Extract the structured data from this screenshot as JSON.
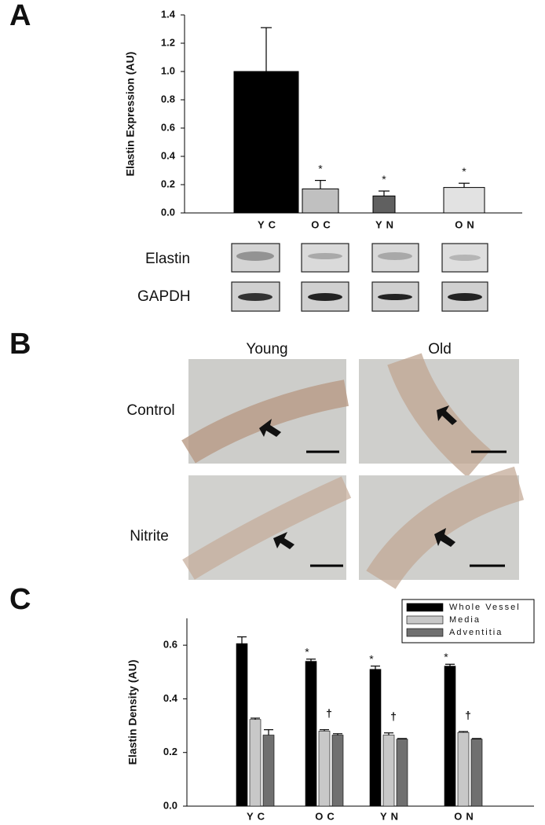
{
  "panels": [
    "A",
    "B",
    "C"
  ],
  "blots": {
    "rows": [
      "Elastin",
      "GAPDH"
    ]
  },
  "micrographs": {
    "columns": [
      "Young",
      "Old"
    ],
    "rows": [
      "Control",
      "Nitrite"
    ]
  },
  "chart_data": [
    {
      "type": "bar",
      "ylabel": "Elastin Expression (AU)",
      "categories": [
        "YC",
        "OC",
        "YN",
        "ON"
      ],
      "values": [
        1.0,
        0.17,
        0.12,
        0.18
      ],
      "errors": [
        0.31,
        0.06,
        0.035,
        0.03
      ],
      "colors": [
        "#000000",
        "#c0c0c0",
        "#606060",
        "#e2e2e2"
      ],
      "markers": [
        null,
        "*",
        "*",
        "*"
      ],
      "ylim": [
        0,
        1.4
      ],
      "yticks": [
        {
          "value": 0,
          "label": "0.0"
        },
        0.2,
        0.4,
        0.6,
        0.8,
        {
          "value": 1,
          "label": "1.0"
        },
        1.2,
        1.4
      ]
    },
    {
      "type": "grouped_bar",
      "ylabel": "Elastin Density (AU)",
      "categories": [
        "YC",
        "OC",
        "YN",
        "ON"
      ],
      "legend": "upper right",
      "series": [
        {
          "name": "Whole Vessel",
          "color": "#000000",
          "values": [
            0.606,
            0.54,
            0.51,
            0.522
          ],
          "errors": [
            0.025,
            0.008,
            0.012,
            0.007
          ],
          "markers": [
            null,
            "*",
            "*",
            "*"
          ]
        },
        {
          "name": "Media",
          "color": "#c8c8c8",
          "values": [
            0.323,
            0.28,
            0.265,
            0.275
          ],
          "errors": [
            0.005,
            0.005,
            0.008,
            0.003
          ],
          "markers": [
            null,
            "†",
            "†",
            "†"
          ]
        },
        {
          "name": "Adventitia",
          "color": "#707070",
          "values": [
            0.265,
            0.265,
            0.25,
            0.25
          ],
          "errors": [
            0.02,
            0.005,
            0.002,
            0.002
          ]
        }
      ],
      "ylim": [
        0,
        0.7
      ],
      "yticks": [
        {
          "value": 0,
          "label": "0.0"
        },
        0.2,
        0.4,
        0.6
      ]
    }
  ]
}
